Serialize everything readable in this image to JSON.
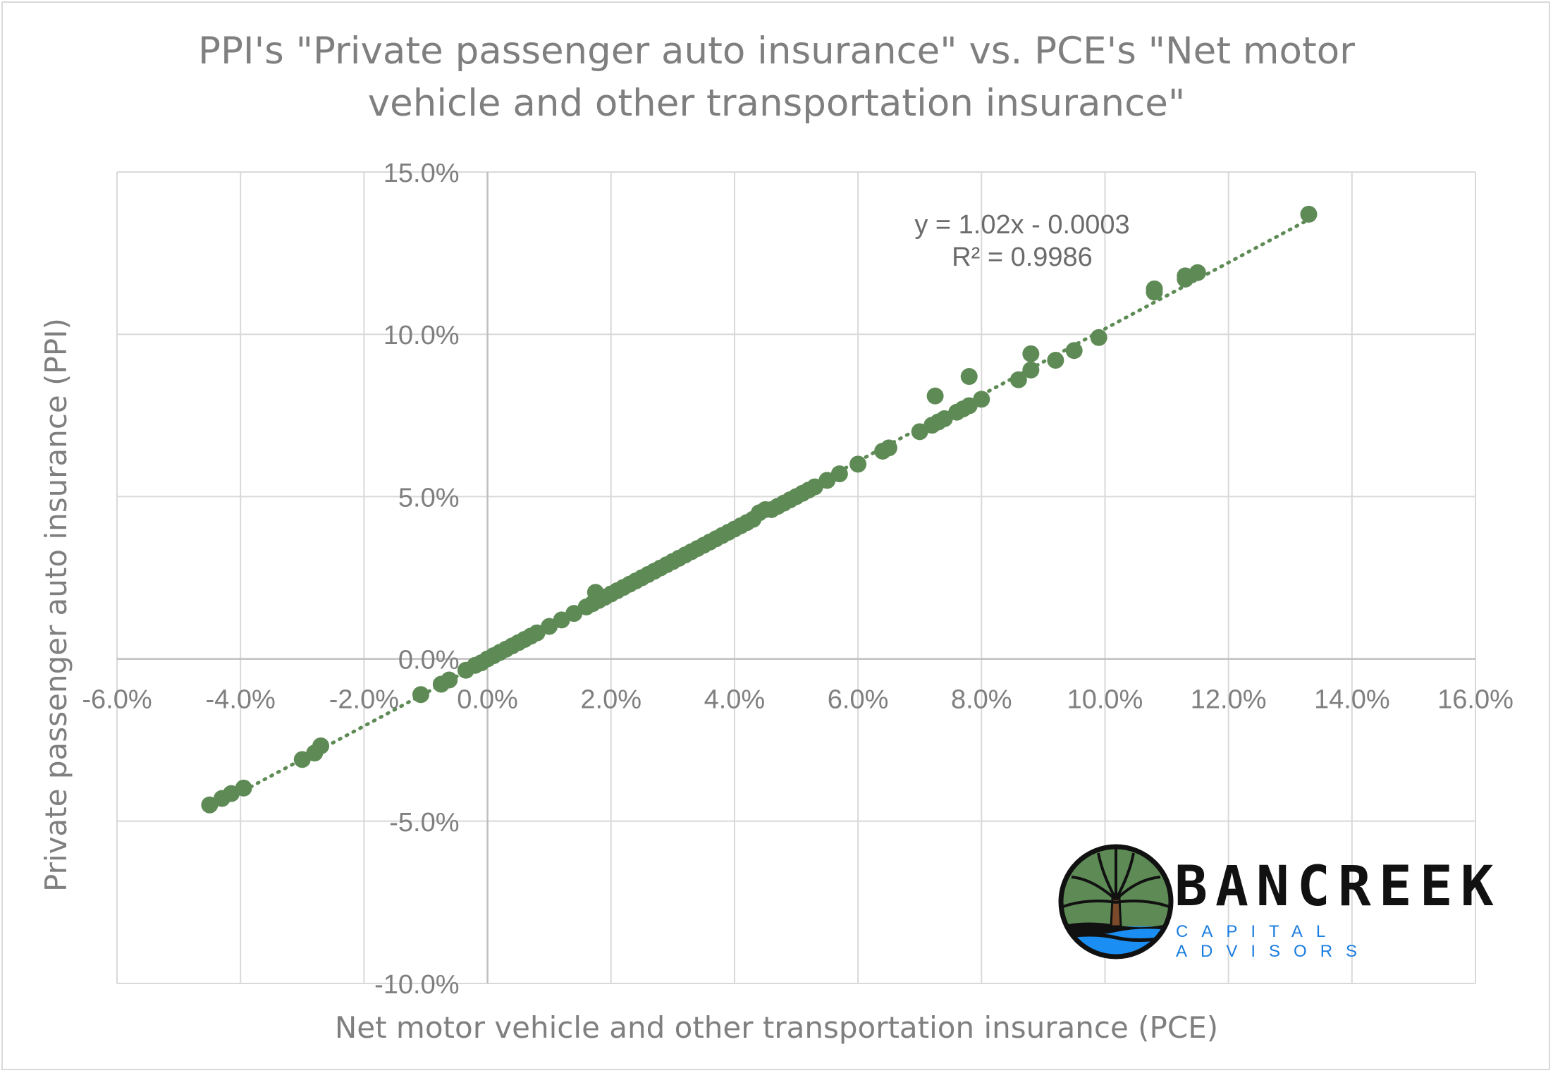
{
  "chart_data": {
    "type": "scatter",
    "title": [
      "PPI's \"Private passenger auto insurance\" vs. PCE's \"Net motor",
      "vehicle and other transportation insurance\""
    ],
    "xlabel": "Net motor vehicle and other transportation insurance (PCE)",
    "ylabel": "Private passenger auto insurance (PPI)",
    "xlim": [
      -0.06,
      0.16
    ],
    "ylim": [
      -0.1,
      0.15
    ],
    "x_ticks": [
      -0.06,
      -0.04,
      -0.02,
      0.0,
      0.02,
      0.04,
      0.06,
      0.08,
      0.1,
      0.12,
      0.14,
      0.16
    ],
    "x_tick_labels": [
      "-6.0%",
      "-4.0%",
      "-2.0%",
      "0.0%",
      "2.0%",
      "4.0%",
      "6.0%",
      "8.0%",
      "10.0%",
      "12.0%",
      "14.0%",
      "16.0%"
    ],
    "y_ticks": [
      -0.1,
      -0.05,
      0.0,
      0.05,
      0.1,
      0.15
    ],
    "y_tick_labels": [
      "-10.0%",
      "-5.0%",
      "0.0%",
      "5.0%",
      "10.0%",
      "15.0%"
    ],
    "grid": true,
    "marker_color": "#5e8b55",
    "trendline": {
      "type": "linear",
      "slope": 1.02,
      "intercept": -0.0003,
      "x_range": [
        -0.045,
        0.133
      ],
      "style": "dotted",
      "color": "#5e8b55",
      "equation_label": "y = 1.02x - 0.0003",
      "r2_label": "R² = 0.9986"
    },
    "series": [
      {
        "points": [
          [
            -0.045,
            -0.045
          ],
          [
            -0.043,
            -0.043
          ],
          [
            -0.0415,
            -0.0415
          ],
          [
            -0.0395,
            -0.0398
          ],
          [
            -0.03,
            -0.031
          ],
          [
            -0.028,
            -0.029
          ],
          [
            -0.027,
            -0.0268
          ],
          [
            -0.0108,
            -0.011
          ],
          [
            -0.0075,
            -0.0078
          ],
          [
            -0.0062,
            -0.0065
          ],
          [
            -0.0035,
            -0.0035
          ],
          [
            -0.002,
            -0.002
          ],
          [
            -0.001,
            -0.0012
          ],
          [
            0.0,
            0.0
          ],
          [
            0.001,
            0.001
          ],
          [
            0.002,
            0.002
          ],
          [
            0.003,
            0.003
          ],
          [
            0.004,
            0.004
          ],
          [
            0.005,
            0.005
          ],
          [
            0.006,
            0.006
          ],
          [
            0.007,
            0.007
          ],
          [
            0.008,
            0.008
          ],
          [
            0.01,
            0.01
          ],
          [
            0.012,
            0.012
          ],
          [
            0.014,
            0.014
          ],
          [
            0.016,
            0.016
          ],
          [
            0.017,
            0.017
          ],
          [
            0.018,
            0.018
          ],
          [
            0.0175,
            0.0205
          ],
          [
            0.019,
            0.019
          ],
          [
            0.02,
            0.02
          ],
          [
            0.021,
            0.021
          ],
          [
            0.022,
            0.022
          ],
          [
            0.023,
            0.023
          ],
          [
            0.024,
            0.024
          ],
          [
            0.025,
            0.025
          ],
          [
            0.026,
            0.026
          ],
          [
            0.027,
            0.027
          ],
          [
            0.028,
            0.028
          ],
          [
            0.029,
            0.029
          ],
          [
            0.03,
            0.03
          ],
          [
            0.031,
            0.031
          ],
          [
            0.032,
            0.032
          ],
          [
            0.033,
            0.033
          ],
          [
            0.034,
            0.034
          ],
          [
            0.035,
            0.035
          ],
          [
            0.036,
            0.036
          ],
          [
            0.037,
            0.037
          ],
          [
            0.038,
            0.038
          ],
          [
            0.039,
            0.039
          ],
          [
            0.04,
            0.04
          ],
          [
            0.041,
            0.041
          ],
          [
            0.042,
            0.042
          ],
          [
            0.043,
            0.043
          ],
          [
            0.044,
            0.045
          ],
          [
            0.045,
            0.046
          ],
          [
            0.046,
            0.046
          ],
          [
            0.047,
            0.047
          ],
          [
            0.048,
            0.048
          ],
          [
            0.049,
            0.049
          ],
          [
            0.05,
            0.05
          ],
          [
            0.051,
            0.051
          ],
          [
            0.052,
            0.052
          ],
          [
            0.053,
            0.053
          ],
          [
            0.055,
            0.055
          ],
          [
            0.057,
            0.057
          ],
          [
            0.06,
            0.06
          ],
          [
            0.064,
            0.064
          ],
          [
            0.065,
            0.065
          ],
          [
            0.07,
            0.07
          ],
          [
            0.072,
            0.072
          ],
          [
            0.073,
            0.073
          ],
          [
            0.074,
            0.074
          ],
          [
            0.0725,
            0.081
          ],
          [
            0.076,
            0.076
          ],
          [
            0.077,
            0.077
          ],
          [
            0.078,
            0.078
          ],
          [
            0.078,
            0.087
          ],
          [
            0.08,
            0.08
          ],
          [
            0.086,
            0.086
          ],
          [
            0.088,
            0.089
          ],
          [
            0.088,
            0.094
          ],
          [
            0.092,
            0.092
          ],
          [
            0.095,
            0.095
          ],
          [
            0.099,
            0.099
          ],
          [
            0.108,
            0.113
          ],
          [
            0.108,
            0.114
          ],
          [
            0.113,
            0.117
          ],
          [
            0.113,
            0.118
          ],
          [
            0.115,
            0.119
          ],
          [
            0.133,
            0.137
          ]
        ]
      }
    ]
  },
  "logo": {
    "name": "BANCREEK",
    "tagline": "CAPITAL ADVISORS"
  }
}
